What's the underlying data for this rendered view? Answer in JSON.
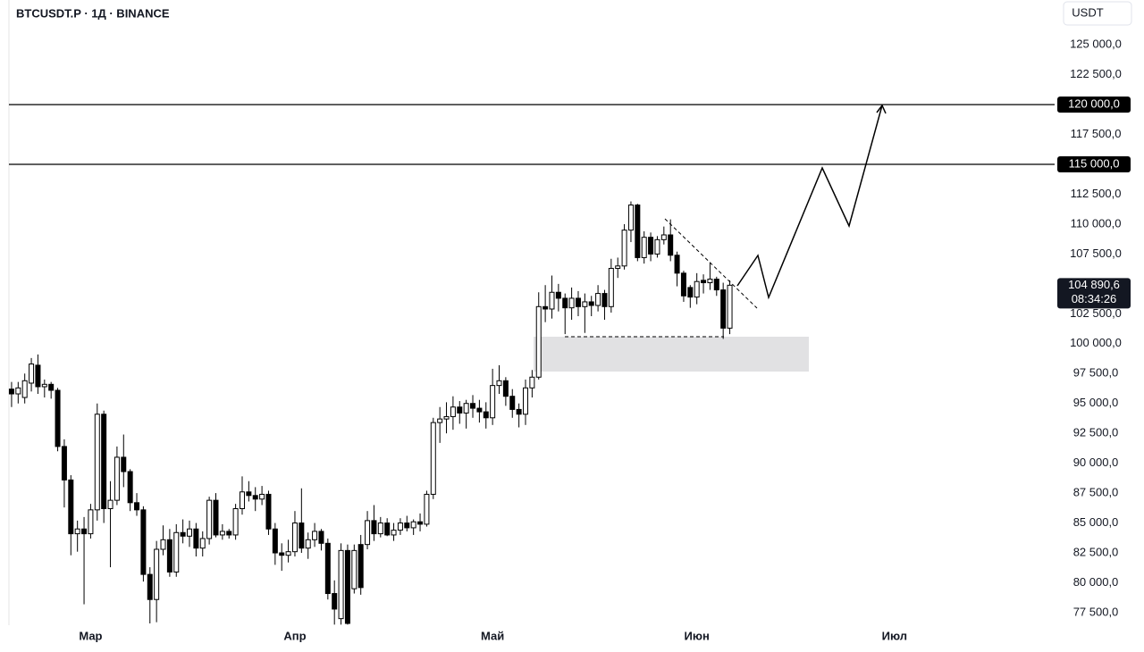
{
  "chart_data": {
    "type": "candlestick",
    "title": "BTCUSDT.P · 1Д · BINANCE",
    "currency": "USDT",
    "up_color": "#ffffff",
    "down_color": "#000000",
    "xlim": [
      -0.4,
      158.3
    ],
    "xticks": [
      {
        "value": 12,
        "label": "Мар"
      },
      {
        "value": 43,
        "label": "Апр"
      },
      {
        "value": 73,
        "label": "Май"
      },
      {
        "value": 104,
        "label": "Июн"
      },
      {
        "value": 134,
        "label": "Июл"
      }
    ],
    "ylim": [
      76450,
      128750
    ],
    "yticks": [
      {
        "value": 77500,
        "label": "77 500,0"
      },
      {
        "value": 80000,
        "label": "80 000,0"
      },
      {
        "value": 82500,
        "label": "82 500,0"
      },
      {
        "value": 85000,
        "label": "85 000,0"
      },
      {
        "value": 87500,
        "label": "87 500,0"
      },
      {
        "value": 90000,
        "label": "90 000,0"
      },
      {
        "value": 92500,
        "label": "92 500,0"
      },
      {
        "value": 95000,
        "label": "95 000,0"
      },
      {
        "value": 97500,
        "label": "97 500,0"
      },
      {
        "value": 100000,
        "label": "100 000,0"
      },
      {
        "value": 102500,
        "label": "102 500,0"
      },
      {
        "value": 105000,
        "label": "105 000,0"
      },
      {
        "value": 107500,
        "label": "107 500,0"
      },
      {
        "value": 110000,
        "label": "110 000,0"
      },
      {
        "value": 112500,
        "label": "112 500,0"
      },
      {
        "value": 115000,
        "label": "115 000,0"
      },
      {
        "value": 117500,
        "label": "117 500,0"
      },
      {
        "value": 120000,
        "label": "120 000,0"
      },
      {
        "value": 122500,
        "label": "122 500,0"
      },
      {
        "value": 125000,
        "label": "125 000,0"
      }
    ],
    "levels": [
      {
        "value": 120000,
        "label": "120 000,0"
      },
      {
        "value": 115000,
        "label": "115 000,0"
      }
    ],
    "last_price": {
      "label": "104 890,6",
      "countdown": "08:34:26"
    },
    "open": [
      96200,
      95800,
      95500,
      96700,
      98200,
      96400,
      96600,
      96100,
      91400,
      88600,
      84100,
      84500,
      84100,
      86100,
      94100,
      86200,
      86900,
      90500,
      89300,
      86700,
      86100,
      80700,
      78600,
      82800,
      83600,
      80900,
      84200,
      83900,
      84500,
      82900,
      83700,
      86900,
      84000,
      84300,
      84000,
      86200,
      87600,
      87300,
      87000,
      87400,
      84500,
      82500,
      82300,
      82600,
      85000,
      82900,
      83600,
      84300,
      83300,
      79100,
      77000,
      82700,
      79500,
      83200,
      83200,
      85200,
      84100,
      85000,
      84000,
      84400,
      85000,
      84600,
      85100,
      84900,
      87400,
      93400,
      93700,
      93900,
      94700,
      94200,
      95000,
      94600,
      94300,
      93800,
      96500,
      96900,
      95600,
      94500,
      94100,
      96300,
      97200,
      103100,
      102900,
      104300,
      103800,
      103000,
      103800,
      103100,
      103500,
      103200,
      104200,
      103100,
      106300,
      106500,
      109500,
      111600,
      107200,
      108900,
      107500,
      108700,
      109100,
      107400,
      105900,
      104700,
      103900,
      105300,
      105100,
      105400,
      104500,
      101300
    ],
    "high": [
      96800,
      96800,
      97500,
      98800,
      99100,
      97000,
      96800,
      96300,
      92000,
      89000,
      85200,
      85500,
      86600,
      95000,
      94400,
      88500,
      91400,
      92400,
      89500,
      87500,
      86400,
      81300,
      83500,
      84800,
      84500,
      84900,
      85300,
      85200,
      85000,
      84300,
      87200,
      87500,
      84900,
      84500,
      86600,
      88900,
      88500,
      88000,
      88100,
      87700,
      85000,
      83300,
      83600,
      86000,
      87900,
      84200,
      85000,
      84500,
      83700,
      80200,
      83300,
      83200,
      83200,
      84000,
      86000,
      86500,
      85500,
      85400,
      85000,
      85400,
      85600,
      85300,
      85800,
      87700,
      93800,
      94700,
      95100,
      95600,
      95200,
      95300,
      95700,
      95300,
      95100,
      97900,
      98200,
      97200,
      96200,
      95000,
      97000,
      97800,
      104300,
      104900,
      105700,
      105000,
      104200,
      104700,
      104400,
      104200,
      104000,
      104900,
      104500,
      107100,
      107200,
      110000,
      111900,
      111700,
      109400,
      109300,
      109000,
      109800,
      110400,
      107700,
      106100,
      104900,
      105900,
      105800,
      106800,
      105600,
      105100,
      105300
    ],
    "low": [
      94700,
      95000,
      95000,
      96000,
      95800,
      95500,
      95400,
      91000,
      86300,
      82300,
      82600,
      78200,
      83700,
      85200,
      85000,
      81300,
      86500,
      88000,
      86000,
      85600,
      80100,
      76600,
      76700,
      82300,
      80500,
      80500,
      83300,
      83000,
      82200,
      82200,
      83200,
      83800,
      83600,
      83700,
      83600,
      85700,
      86800,
      86000,
      86500,
      84000,
      81500,
      81000,
      81700,
      82200,
      82500,
      82000,
      83000,
      82700,
      78600,
      76500,
      76500,
      76500,
      79100,
      79000,
      82800,
      83500,
      83800,
      83900,
      83500,
      84000,
      84300,
      84000,
      84300,
      84700,
      87000,
      91700,
      92500,
      92800,
      93300,
      92900,
      93800,
      93400,
      92900,
      93200,
      95800,
      94800,
      93800,
      93000,
      93200,
      95500,
      97000,
      101800,
      102100,
      102700,
      100800,
      102000,
      102300,
      100900,
      102300,
      102700,
      102000,
      102600,
      105500,
      106200,
      108500,
      106900,
      106700,
      106900,
      107200,
      108300,
      106900,
      104800,
      103500,
      103000,
      103300,
      104200,
      104500,
      104000,
      100400,
      100800
    ],
    "close": [
      95800,
      96300,
      96900,
      98300,
      96400,
      96600,
      96100,
      91400,
      88600,
      84100,
      84500,
      84100,
      86100,
      94100,
      86200,
      86900,
      90500,
      89300,
      86700,
      86100,
      80700,
      78600,
      82800,
      83600,
      80900,
      84200,
      83900,
      84500,
      82900,
      83700,
      86900,
      84000,
      84300,
      84000,
      86200,
      87600,
      87300,
      87000,
      87400,
      84500,
      82500,
      82300,
      82600,
      85000,
      82900,
      83600,
      84300,
      83300,
      79100,
      77800,
      82700,
      76600,
      82700,
      79600,
      85200,
      84100,
      85000,
      84000,
      84400,
      85000,
      84600,
      85100,
      84900,
      87400,
      93400,
      93700,
      93900,
      94700,
      94200,
      95000,
      94600,
      94300,
      93800,
      96500,
      96900,
      95600,
      94500,
      94100,
      96300,
      97200,
      103100,
      102900,
      104300,
      103800,
      103000,
      103800,
      103100,
      103500,
      103200,
      104200,
      103100,
      106300,
      106500,
      109500,
      111600,
      107200,
      108900,
      107500,
      108700,
      109100,
      107400,
      105900,
      104000,
      103900,
      105200,
      105100,
      105400,
      104500,
      101300,
      104890.6
    ]
  }
}
